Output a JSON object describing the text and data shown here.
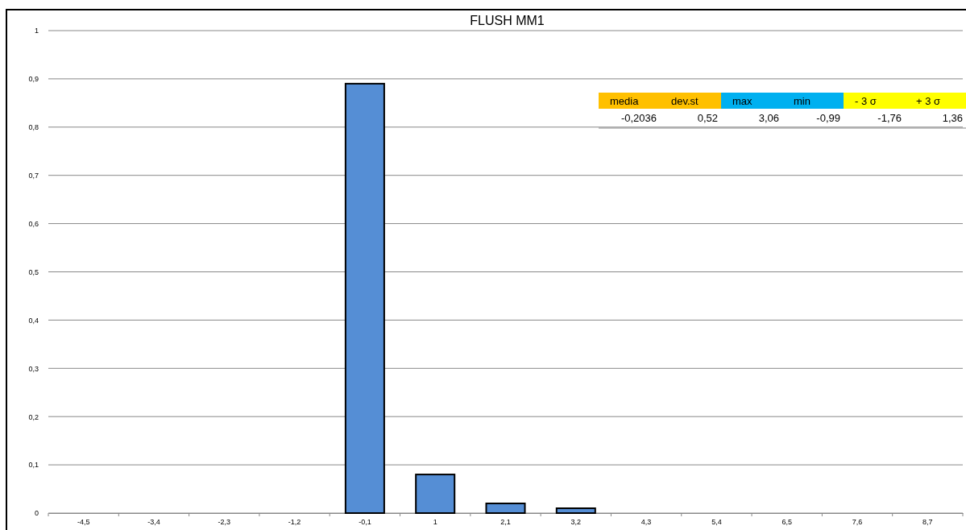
{
  "chart_data": {
    "type": "bar",
    "title": "FLUSH MM1",
    "categories": [
      "-4,5",
      "-3,4",
      "-2,3",
      "-1,2",
      "-0,1",
      "1",
      "2,1",
      "3,2",
      "4,3",
      "5,4",
      "6,5",
      "7,6",
      "8,7"
    ],
    "values": [
      0,
      0,
      0,
      0,
      0.89,
      0.08,
      0.02,
      0.01,
      0,
      0,
      0,
      0,
      0
    ],
    "color": "#558ed5",
    "ylim": [
      0,
      1
    ],
    "yticks": [
      0,
      {
        "value": 0.1,
        "label": "0,1"
      },
      {
        "value": 0.2,
        "label": "0,2"
      },
      {
        "value": 0.3,
        "label": "0,3"
      },
      {
        "value": 0.4,
        "label": "0,4"
      },
      {
        "value": 0.5,
        "label": "0,5"
      },
      {
        "value": 0.6,
        "label": "0,6"
      },
      {
        "value": 0.7,
        "label": "0,7"
      },
      {
        "value": 0.8,
        "label": "0,8"
      },
      {
        "value": 0.9,
        "label": "0,9"
      },
      1
    ],
    "grid": "y",
    "annotations": [
      "media",
      "dev.st",
      "max",
      "min",
      "-  3 σ",
      "+ 3 σ",
      "-0,2036",
      "0,52",
      "3,06",
      "-0,99",
      "-1,76",
      "1,36"
    ]
  }
}
